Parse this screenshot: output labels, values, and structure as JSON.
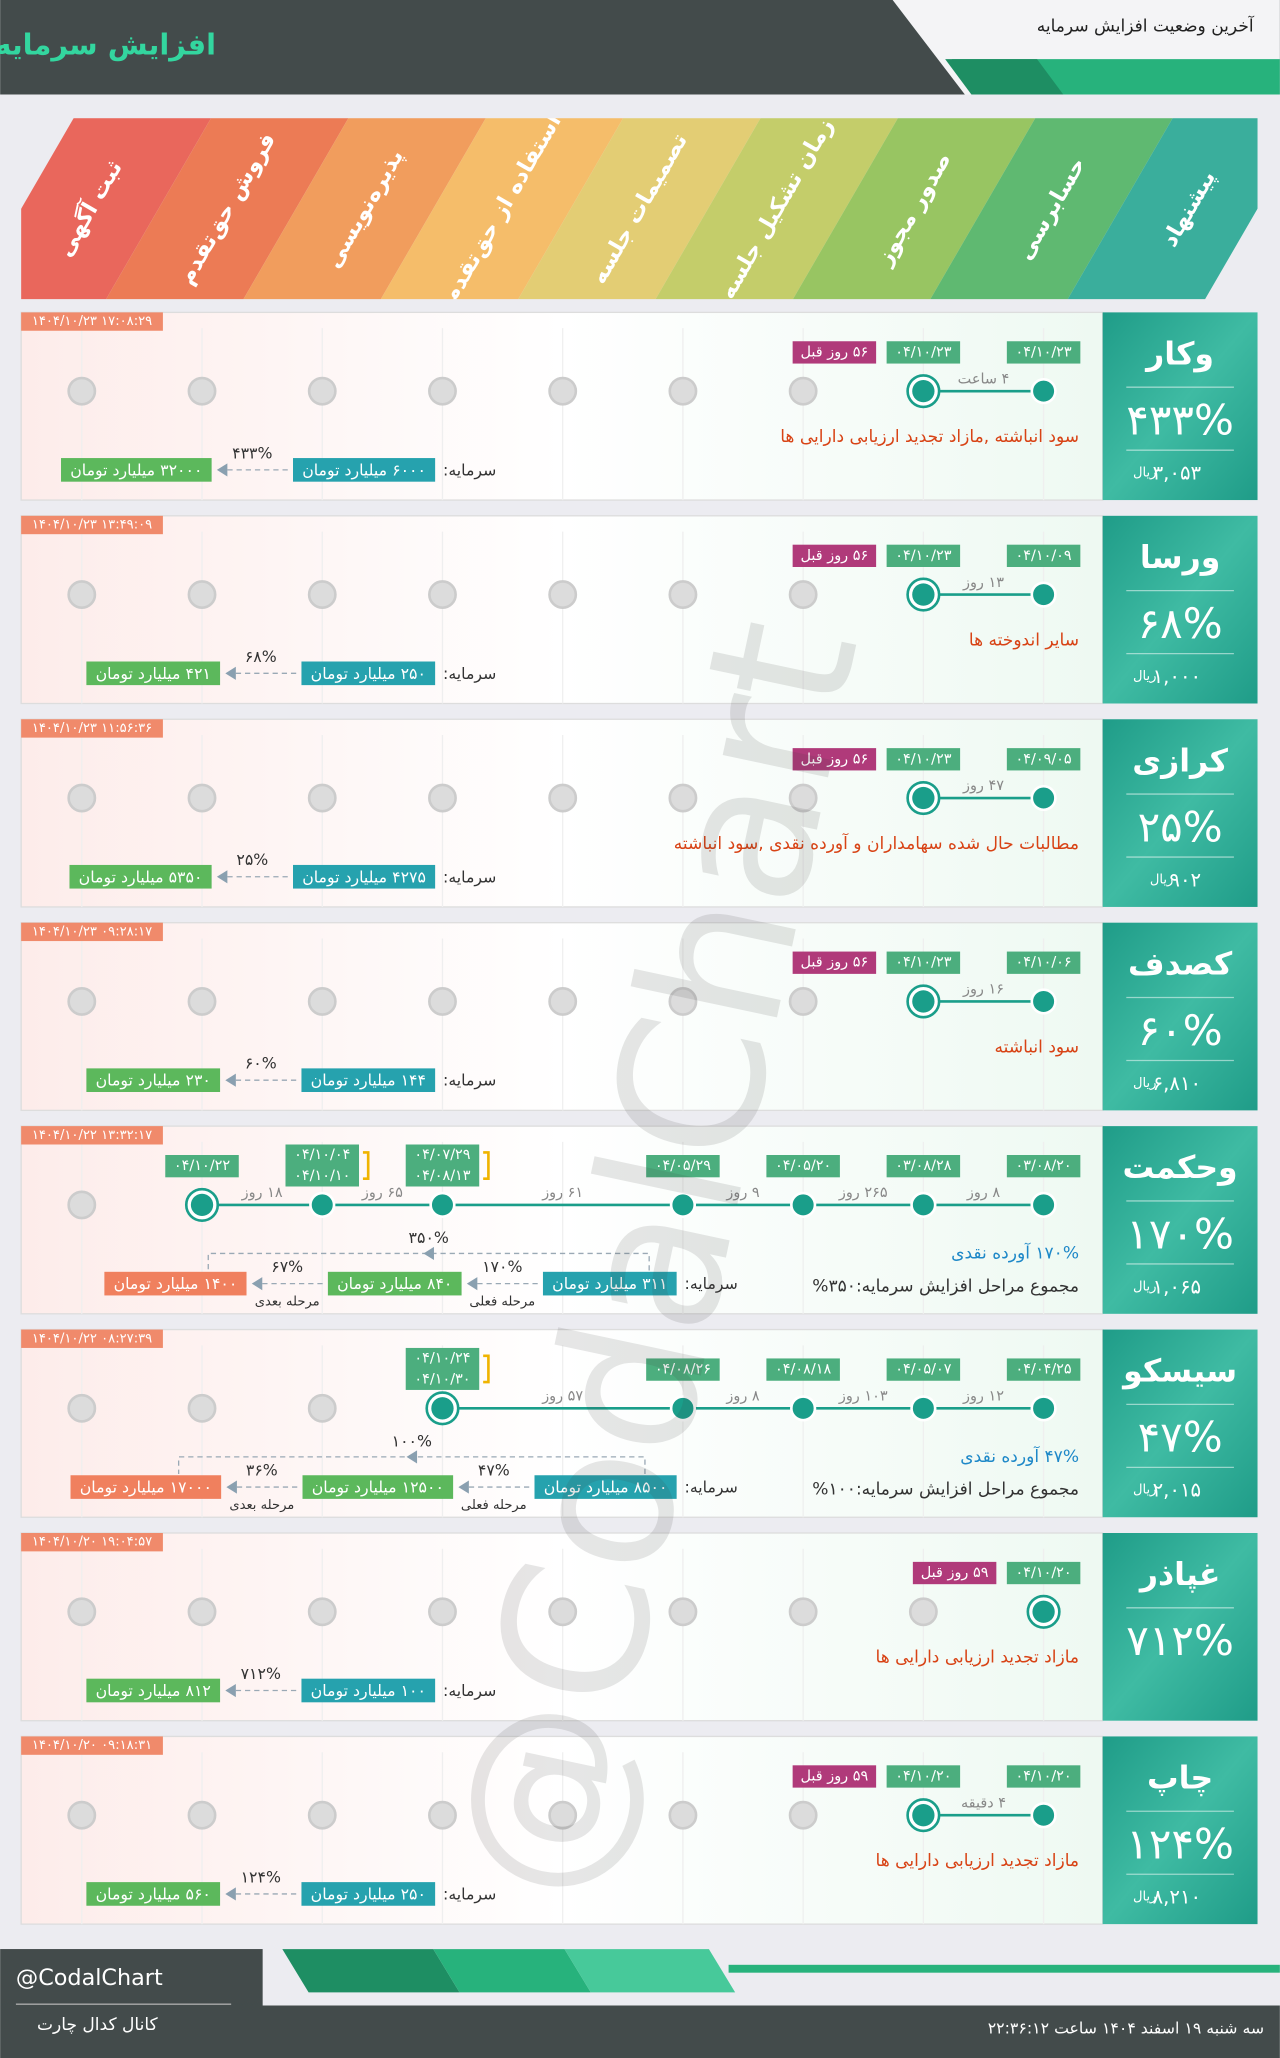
{
  "header": {
    "title": "افزایش سرمایه",
    "subtitle": "آخرین وضعیت افزایش سرمایه"
  },
  "stages": [
    "پیشنهاد",
    "حسابرسی",
    "صدور مجوز",
    "زمان تشکیل جلسه",
    "تصمیمات جلسه",
    "استفاده از حق‌تقدم",
    "پذیره‌نویسی",
    "فروش حق‌تقدم",
    "ثبت آگهی"
  ],
  "labels": {
    "capital": "سرمایه:",
    "currency": "ریال",
    "current_step": "مرحله فعلی",
    "next_step": "مرحله بعدی"
  },
  "rows": [
    {
      "symbol": "وکار",
      "change": "۴۳۳%",
      "price": "۳,۰۵۳",
      "time": "۱۴۰۴/۱۰/۲۳ ۱۷:۰۸:۲۹",
      "dates": [
        "۰۴/۱۰/۲۳",
        "۰۴/۱۰/۲۳"
      ],
      "gaps": [
        null,
        "۴ ساعت"
      ],
      "ago": "۵۶ روز قبل",
      "notes": [
        "سود انباشته ,مازاد تجدید ارزیابی دارایی ها"
      ],
      "capital": {
        "from": "۶۰۰۰ میلیارد تومان",
        "steps": [
          {
            "to": "۳۲۰۰۰ میلیارد تومان",
            "change": "۴۳۳%"
          }
        ]
      }
    },
    {
      "symbol": "ورسا",
      "change": "۶۸%",
      "price": "۱,۰۰۰",
      "time": "۱۴۰۴/۱۰/۲۳ ۱۳:۴۹:۰۹",
      "dates": [
        "۰۴/۱۰/۰۹",
        "۰۴/۱۰/۲۳"
      ],
      "gaps": [
        null,
        "۱۳ روز"
      ],
      "ago": "۵۶ روز قبل",
      "notes": [
        "سایر اندوخته ها"
      ],
      "capital": {
        "from": "۲۵۰ میلیارد تومان",
        "steps": [
          {
            "to": "۴۲۱ میلیارد تومان",
            "change": "۶۸%"
          }
        ]
      }
    },
    {
      "symbol": "کرازی",
      "change": "۲۵%",
      "price": "۹۰۲",
      "time": "۱۴۰۴/۱۰/۲۳ ۱۱:۵۶:۳۶",
      "dates": [
        "۰۴/۰۹/۰۵",
        "۰۴/۱۰/۲۳"
      ],
      "gaps": [
        null,
        "۴۷ روز"
      ],
      "ago": "۵۶ روز قبل",
      "notes": [
        "مطالبات حال شده سهامداران و آورده نقدی ,سود انباشته"
      ],
      "capital": {
        "from": "۴۲۷۵ میلیارد تومان",
        "steps": [
          {
            "to": "۵۳۵۰ میلیارد تومان",
            "change": "۲۵%"
          }
        ]
      }
    },
    {
      "symbol": "کصدف",
      "change": "۶۰%",
      "price": "۶,۸۱۰",
      "time": "۱۴۰۴/۱۰/۲۳ ۰۹:۲۸:۱۷",
      "dates": [
        "۰۴/۱۰/۰۶",
        "۰۴/۱۰/۲۳"
      ],
      "gaps": [
        null,
        "۱۶ روز"
      ],
      "ago": "۵۶ روز قبل",
      "notes": [
        "سود انباشته"
      ],
      "capital": {
        "from": "۱۴۴ میلیارد تومان",
        "steps": [
          {
            "to": "۲۳۰ میلیارد تومان",
            "change": "۶۰%"
          }
        ]
      }
    },
    {
      "symbol": "وحکمت",
      "change": "۱۷۰%",
      "price": "۱,۰۶۵",
      "time": "۱۴۰۴/۱۰/۲۲ ۱۳:۳۲:۱۷",
      "dates": [
        "۰۳/۰۸/۲۰",
        "۰۳/۰۸/۲۸",
        "۰۴/۰۵/۲۰",
        "۰۴/۰۵/۲۹",
        null,
        [
          "۰۴/۰۷/۲۹",
          "۰۴/۰۸/۱۳"
        ],
        [
          "۰۴/۱۰/۰۴",
          "۰۴/۱۰/۱۰"
        ],
        "۰۴/۱۰/۲۲"
      ],
      "gaps": [
        null,
        "۸ روز",
        "۲۶۵ روز",
        "۹ روز",
        null,
        "۶۱ روز",
        "۶۵ روز",
        "۱۸ روز"
      ],
      "notes": [
        "۱۷۰% آورده نقدی",
        "مجموع مراحل افزایش سرمایه:۳۵۰%"
      ],
      "capital": {
        "from": "۳۱۱ میلیارد تومان",
        "steps": [
          {
            "to": "۸۴۰ میلیارد تومان",
            "change": "۱۷۰%"
          },
          {
            "to": "۱۴۰۰ میلیارد تومان",
            "change": "۶۷%"
          }
        ],
        "total": "۳۵۰%"
      }
    },
    {
      "symbol": "سیسکو",
      "change": "۴۷%",
      "price": "۲,۰۱۵",
      "time": "۱۴۰۴/۱۰/۲۲ ۰۸:۲۷:۳۹",
      "dates": [
        "۰۴/۰۴/۲۵",
        "۰۴/۰۵/۰۷",
        "۰۴/۰۸/۱۸",
        "۰۴/۰۸/۲۶",
        null,
        [
          "۰۴/۱۰/۲۴",
          "۰۴/۱۰/۳۰"
        ]
      ],
      "gaps": [
        null,
        "۱۲ روز",
        "۱۰۳ روز",
        "۸ روز",
        null,
        "۵۷ روز"
      ],
      "notes": [
        "۴۷% آورده نقدی",
        "مجموع مراحل افزایش سرمایه:۱۰۰%"
      ],
      "capital": {
        "from": "۸۵۰۰ میلیارد تومان",
        "steps": [
          {
            "to": "۱۲۵۰۰ میلیارد تومان",
            "change": "۴۷%"
          },
          {
            "to": "۱۷۰۰۰ میلیارد تومان",
            "change": "۳۶%"
          }
        ],
        "total": "۱۰۰%"
      }
    },
    {
      "symbol": "غپاذر",
      "change": "۷۱۲%",
      "time": "۱۴۰۴/۱۰/۲۰ ۱۹:۰۴:۵۷",
      "dates": [
        "۰۴/۱۰/۲۰"
      ],
      "gaps": [
        null
      ],
      "ago": "۵۹ روز قبل",
      "notes": [
        "مازاد تجدید ارزیابی دارایی ها"
      ],
      "capital": {
        "from": "۱۰۰ میلیارد تومان",
        "steps": [
          {
            "to": "۸۱۲ میلیارد تومان",
            "change": "۷۱۲%"
          }
        ]
      }
    },
    {
      "symbol": "چاپ",
      "change": "۱۲۴%",
      "price": "۸,۲۱۰",
      "time": "۱۴۰۴/۱۰/۲۰ ۰۹:۱۸:۳۱",
      "dates": [
        "۰۴/۱۰/۲۰",
        "۰۴/۱۰/۲۰"
      ],
      "gaps": [
        null,
        "۴ دقیقه"
      ],
      "ago": "۵۹ روز قبل",
      "notes": [
        "مازاد تجدید ارزیابی دارایی ها"
      ],
      "capital": {
        "from": "۲۵۰ میلیارد تومان",
        "steps": [
          {
            "to": "۵۶۰ میلیارد تومان",
            "change": "۱۲۴%"
          }
        ]
      }
    }
  ],
  "watermark": "@CodalChart",
  "footer": {
    "handle": "@CodalChart",
    "channel": "کانال کدال چارت",
    "date": "سه شنبه ۱۹ اسفند ۱۴۰۴ ساعت ۲۲:۳۶:۱۲"
  }
}
